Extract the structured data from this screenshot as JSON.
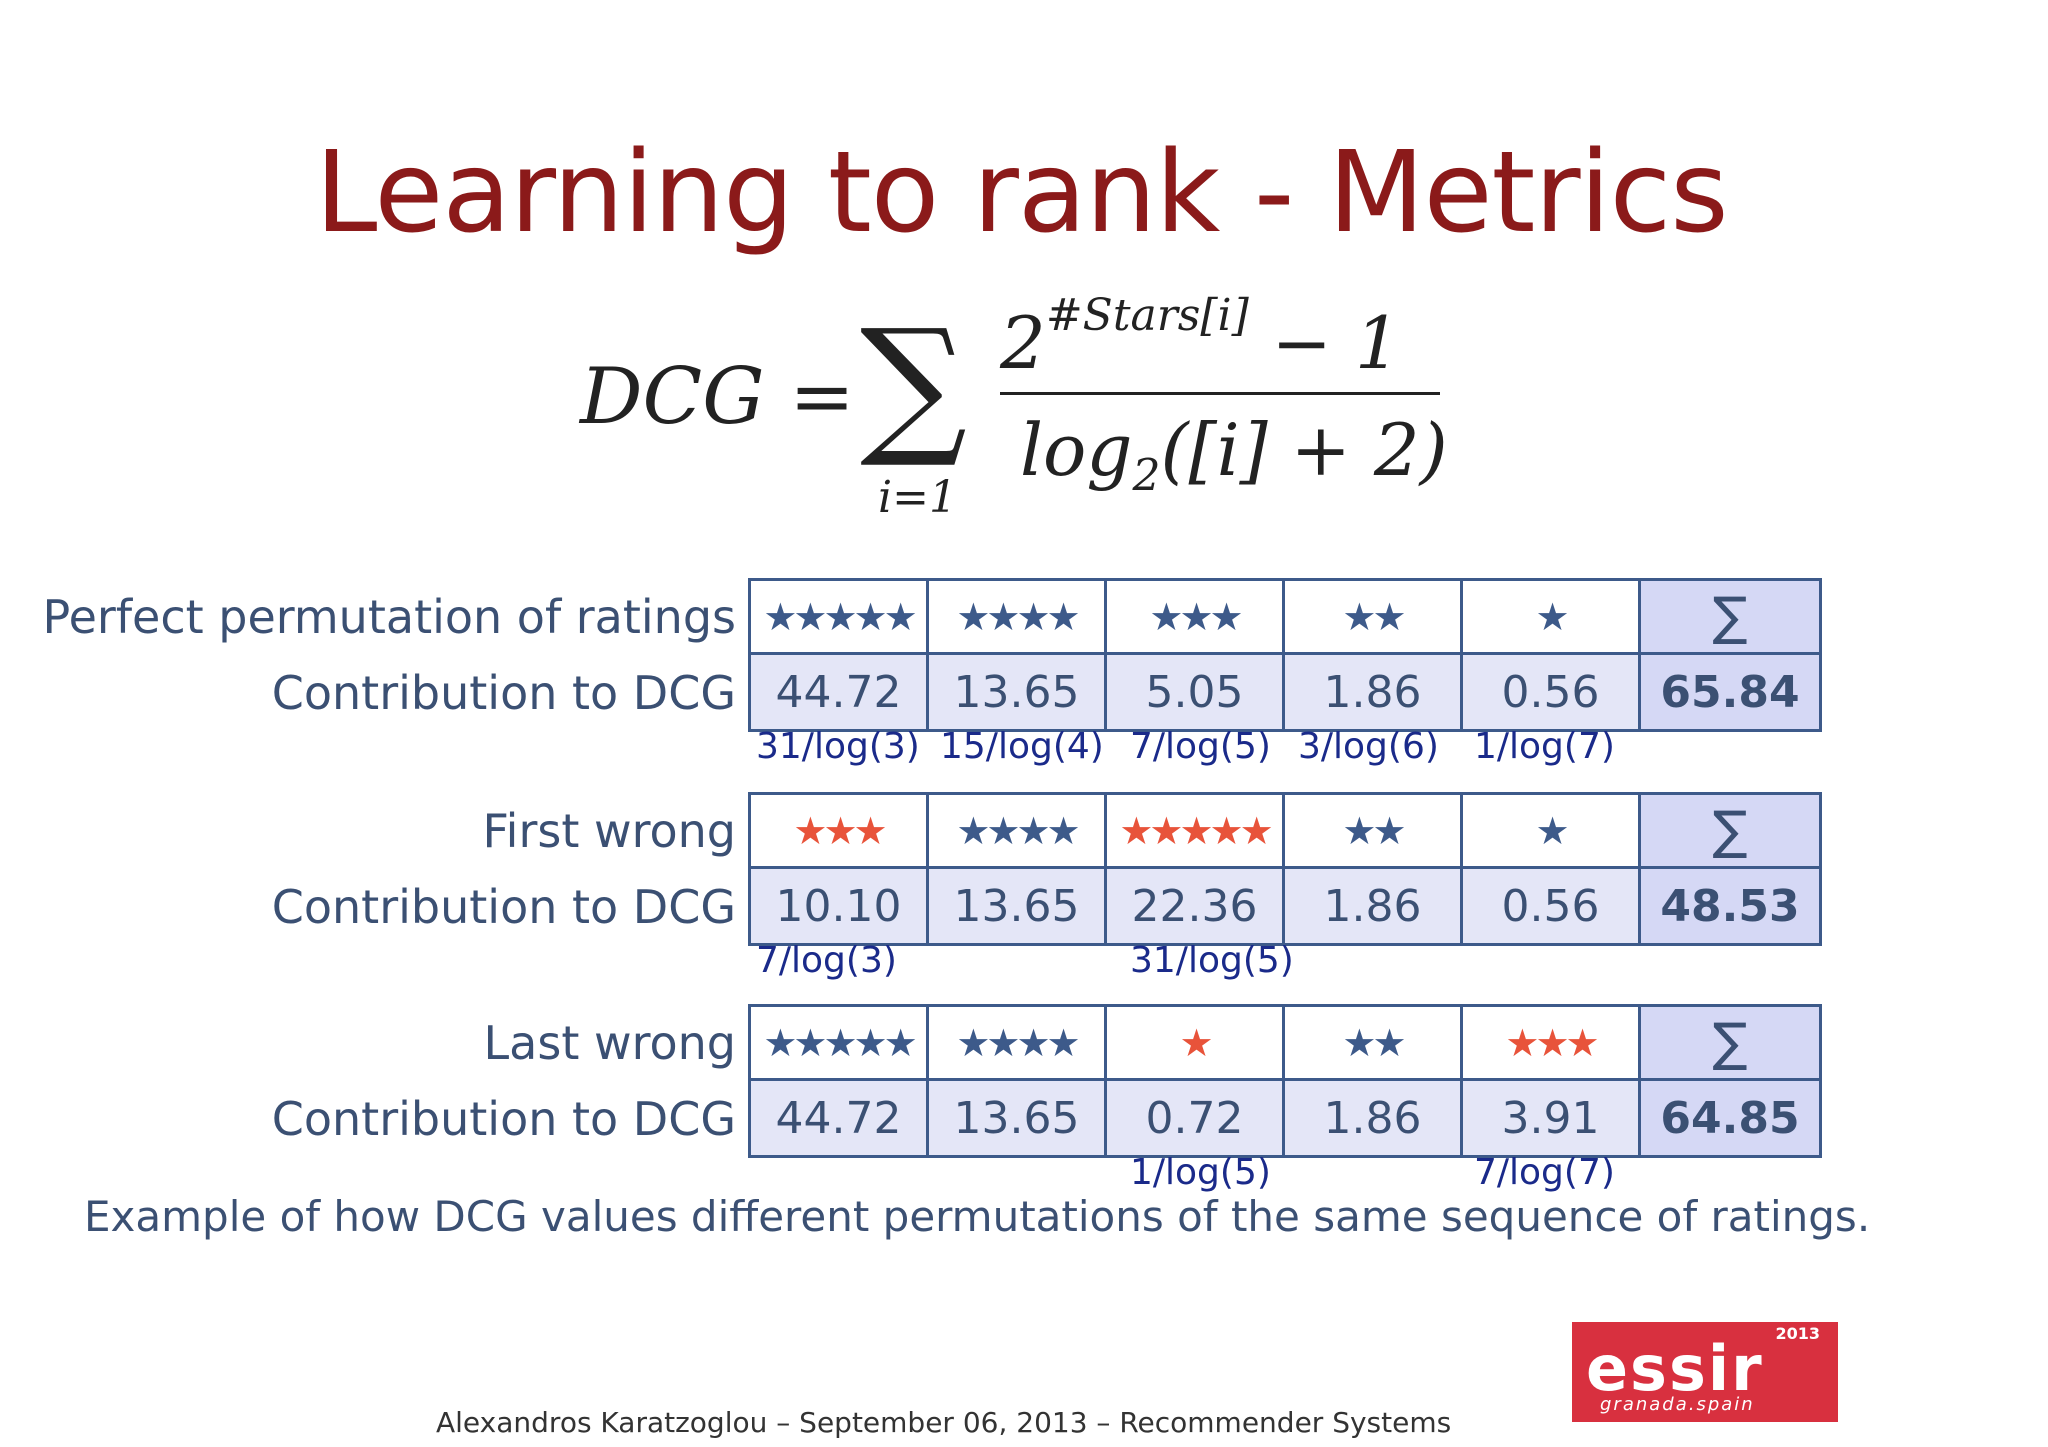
{
  "slide": {
    "title": "Learning to rank - Metrics",
    "caption": "Example of how DCG values different permutations of the same sequence of ratings.",
    "footer": "Alexandros Karatzoglou – September 06, 2013 – Recommender Systems"
  },
  "formula": {
    "lhs": "DCG =",
    "sum_symbol": "∑",
    "sum_index": "i=1",
    "numerator_base": "2",
    "numerator_exponent": "#Stars[i]",
    "numerator_tail": "− 1",
    "denominator_log": "log",
    "denominator_base": "2",
    "denominator_arg": "([i] + 2)"
  },
  "blocks": [
    {
      "label_top": "Perfect permutation of ratings",
      "label_bottom": "Contribution to DCG",
      "stars": [
        {
          "count": 5,
          "color": "blue",
          "glyph": "★★★★★"
        },
        {
          "count": 4,
          "color": "blue",
          "glyph": "★★★★"
        },
        {
          "count": 3,
          "color": "blue",
          "glyph": "★★★"
        },
        {
          "count": 2,
          "color": "blue",
          "glyph": "★★"
        },
        {
          "count": 1,
          "color": "blue",
          "glyph": "★"
        }
      ],
      "sum_symbol": "∑",
      "values": [
        "44.72",
        "13.65",
        "5.05",
        "1.86",
        "0.56"
      ],
      "sum_value": "65.84",
      "annotations": [
        "31/log(3)",
        "15/log(4)",
        "7/log(5)",
        "3/log(6)",
        "1/log(7)"
      ]
    },
    {
      "label_top": "First wrong",
      "label_bottom": "Contribution to DCG",
      "stars": [
        {
          "count": 3,
          "color": "red",
          "glyph": "★★★"
        },
        {
          "count": 4,
          "color": "blue",
          "glyph": "★★★★"
        },
        {
          "count": 5,
          "color": "red",
          "glyph": "★★★★★"
        },
        {
          "count": 2,
          "color": "blue",
          "glyph": "★★"
        },
        {
          "count": 1,
          "color": "blue",
          "glyph": "★"
        }
      ],
      "sum_symbol": "∑",
      "values": [
        "10.10",
        "13.65",
        "22.36",
        "1.86",
        "0.56"
      ],
      "sum_value": "48.53",
      "annotations": [
        "7/log(3)",
        "",
        "31/log(5)",
        "",
        ""
      ]
    },
    {
      "label_top": "Last wrong",
      "label_bottom": "Contribution to DCG",
      "stars": [
        {
          "count": 5,
          "color": "blue",
          "glyph": "★★★★★"
        },
        {
          "count": 4,
          "color": "blue",
          "glyph": "★★★★"
        },
        {
          "count": 1,
          "color": "red",
          "glyph": "★"
        },
        {
          "count": 2,
          "color": "blue",
          "glyph": "★★"
        },
        {
          "count": 3,
          "color": "red",
          "glyph": "★★★"
        }
      ],
      "sum_symbol": "∑",
      "values": [
        "44.72",
        "13.65",
        "0.72",
        "1.86",
        "3.91"
      ],
      "sum_value": "64.85",
      "annotations": [
        "",
        "",
        "1/log(5)",
        "",
        "7/log(7)"
      ]
    }
  ],
  "logo": {
    "text": "essir",
    "year": "2013",
    "location": "granada.spain"
  },
  "colors": {
    "title": "#8b1a1a",
    "star_blue": "#3d5a8a",
    "star_red": "#e8533a",
    "annotation": "#1a2a8a",
    "logo_bg": "#d8303f"
  }
}
